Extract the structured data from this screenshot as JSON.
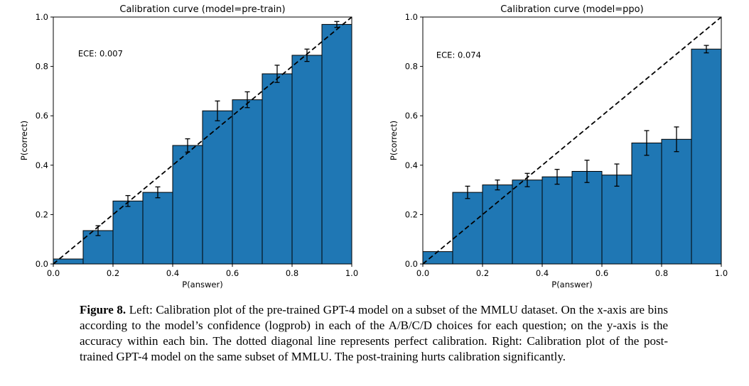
{
  "chart_data": [
    {
      "type": "bar",
      "title": "Calibration curve (model=pre-train)",
      "annotation": "ECE: 0.007",
      "annotation_xy": [
        0.083,
        0.84
      ],
      "xlabel": "P(answer)",
      "ylabel": "P(correct)",
      "xlim": [
        0,
        1
      ],
      "ylim": [
        0,
        1
      ],
      "bin_width": 0.1,
      "x": [
        0.05,
        0.15,
        0.25,
        0.35,
        0.45,
        0.55,
        0.65,
        0.75,
        0.85,
        0.95
      ],
      "values": [
        0.02,
        0.135,
        0.255,
        0.29,
        0.48,
        0.62,
        0.665,
        0.77,
        0.845,
        0.97
      ],
      "errors": [
        0,
        0.02,
        0.022,
        0.022,
        0.027,
        0.04,
        0.032,
        0.035,
        0.025,
        0.012
      ],
      "ticks": [
        0,
        0.2,
        0.4,
        0.6,
        0.8,
        1
      ],
      "tick_labels": [
        "0.0",
        "0.2",
        "0.4",
        "0.6",
        "0.8",
        "1.0"
      ],
      "diagonal": true,
      "grid": false,
      "legend": null,
      "bar_color": "#1f77b4",
      "bar_edge_color": "#000000"
    },
    {
      "type": "bar",
      "title": "Calibration curve (model=ppo)",
      "annotation": "ECE: 0.074",
      "annotation_xy": [
        0.045,
        0.835
      ],
      "xlabel": "P(answer)",
      "ylabel": "P(correct)",
      "xlim": [
        0,
        1
      ],
      "ylim": [
        0,
        1
      ],
      "bin_width": 0.1,
      "x": [
        0.05,
        0.15,
        0.25,
        0.35,
        0.45,
        0.55,
        0.65,
        0.75,
        0.85,
        0.95
      ],
      "values": [
        0.05,
        0.29,
        0.32,
        0.34,
        0.353,
        0.375,
        0.36,
        0.49,
        0.505,
        0.87
      ],
      "errors": [
        0,
        0.025,
        0.02,
        0.027,
        0.03,
        0.045,
        0.045,
        0.05,
        0.05,
        0.015
      ],
      "ticks": [
        0,
        0.2,
        0.4,
        0.6,
        0.8,
        1
      ],
      "tick_labels": [
        "0.0",
        "0.2",
        "0.4",
        "0.6",
        "0.8",
        "1.0"
      ],
      "diagonal": true,
      "grid": false,
      "legend": null,
      "bar_color": "#1f77b4",
      "bar_edge_color": "#000000"
    }
  ],
  "caption": {
    "label": "Figure 8.",
    "text": "Left: Calibration plot of the pre-trained GPT-4 model on a subset of the MMLU dataset. On the x-axis are bins according to the model’s confidence (logprob) in each of the A/B/C/D choices for each question; on the y-axis is the accuracy within each bin. The dotted diagonal line represents perfect calibration. Right: Calibration plot of the post-trained GPT-4 model on the same subset of MMLU. The post-training hurts calibration significantly."
  }
}
